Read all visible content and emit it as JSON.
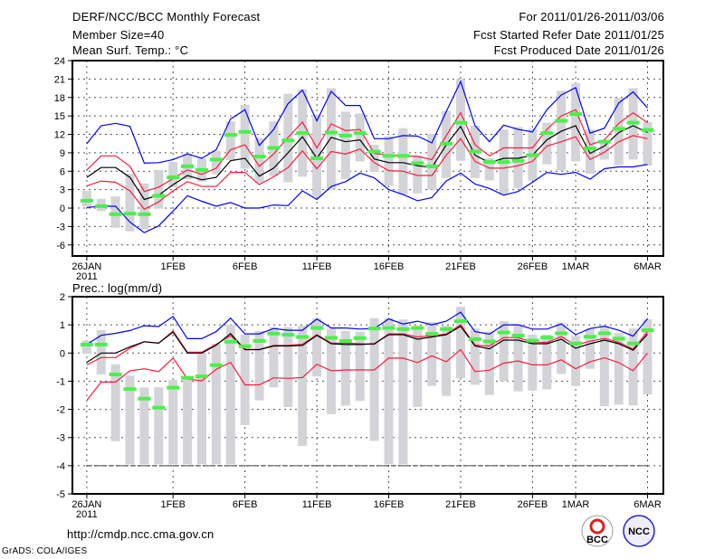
{
  "header": {
    "title": "DERF/NCC/BCC Monthly Forecast",
    "member_size": "Member Size=40",
    "variable": "Mean Surf. Temp.: °C",
    "period": "For 2011/01/26-2011/03/06",
    "started": "Fcst Started Refer Date 2011/01/25",
    "produced": "Fcst Produced Date 2011/01/26"
  },
  "footer": {
    "url": "http://cmdp.ncc.cma.gov.cn",
    "credit": "GrADS: COLA/IGES",
    "logo_bcc": "BCC",
    "logo_ncc": "NCC"
  },
  "colors": {
    "upper_lower_extreme": "#0000ff",
    "spread": "#ff1a3c",
    "mean": "#000000",
    "marker": "#4cf04c",
    "bar": "#d3d4d8"
  },
  "chart_data": [
    {
      "type": "line",
      "title": "Mean Surf. Temp.: °C",
      "x_ticks": [
        {
          "i": 0,
          "label": "26JAN"
        },
        {
          "i": 6,
          "label": "1FEB"
        },
        {
          "i": 11,
          "label": "6FEB"
        },
        {
          "i": 16,
          "label": "11FEB"
        },
        {
          "i": 21,
          "label": "16FEB"
        },
        {
          "i": 26,
          "label": "21FEB"
        },
        {
          "i": 31,
          "label": "26FEB"
        },
        {
          "i": 34,
          "label": "1MAR"
        },
        {
          "i": 39,
          "label": "6MAR"
        }
      ],
      "year_label": "2011",
      "xlim": [
        -1,
        40.1
      ],
      "ylim": [
        -7.8,
        24
      ],
      "y_ticks": [
        24,
        21,
        18,
        15,
        12,
        9,
        6,
        3,
        0,
        -3,
        -6
      ],
      "grid": true,
      "bars_lo": [
        0.3,
        -0.5,
        -3.2,
        -3.8,
        -3.5,
        -0.1,
        3.4,
        4.7,
        4.3,
        5.5,
        7.8,
        6.4,
        4.1,
        5.2,
        4.2,
        5.1,
        1.9,
        3,
        4.7,
        7.6,
        5.9,
        3.6,
        2.2,
        2.4,
        3,
        4.9,
        7.7,
        4.9,
        4.5,
        2.1,
        3.2,
        4.5,
        7.1,
        6.1,
        7.6,
        5.6,
        7.9,
        7,
        7.9,
        6.9
      ],
      "bars_hi": [
        2.8,
        1.5,
        1.9,
        5.6,
        4,
        6.2,
        7.5,
        8.9,
        8.1,
        9.3,
        14.1,
        16.8,
        11.4,
        14.1,
        18.6,
        19.3,
        15.2,
        19.5,
        15.7,
        15.4,
        10.3,
        11.7,
        13,
        8.6,
        12.1,
        15.8,
        21,
        13.4,
        8.1,
        12.8,
        13.2,
        12.9,
        13.9,
        19.1,
        20.3,
        12.8,
        11.1,
        17.9,
        19.5,
        14
      ],
      "series": [
        {
          "name": "max",
          "color": "#0000ff",
          "values": [
            10.5,
            13.4,
            13.8,
            13.3,
            7.3,
            7.4,
            7.9,
            8.8,
            8.1,
            9.5,
            14.5,
            16,
            10.2,
            12.8,
            17,
            19.2,
            14.2,
            19,
            16.7,
            16.7,
            11.3,
            11.3,
            11.8,
            11.7,
            10.6,
            15.7,
            20.6,
            13.4,
            10.8,
            13.5,
            12.8,
            12.4,
            16,
            18.4,
            19.6,
            12.2,
            13,
            17.1,
            18.9,
            16.3
          ]
        },
        {
          "name": "upper",
          "color": "#ff1a3c",
          "values": [
            6.2,
            8.5,
            8.5,
            6.8,
            2.7,
            3.4,
            4.8,
            6.2,
            5.5,
            6.5,
            9.5,
            10.3,
            6.8,
            8.8,
            11.5,
            14,
            9.8,
            13.7,
            12.6,
            12.8,
            8.9,
            8.6,
            8.5,
            8.4,
            7.9,
            11.8,
            15.5,
            10.3,
            8.5,
            9.8,
            9.8,
            9.8,
            12.8,
            15,
            16,
            10.3,
            11.1,
            13.8,
            15.5,
            13.9
          ]
        },
        {
          "name": "mean",
          "color": "#000000",
          "values": [
            5,
            6.6,
            6.6,
            5,
            1.4,
            2.1,
            3.8,
            5.3,
            4.6,
            5,
            7.7,
            8.1,
            5.2,
            6.5,
            9,
            11.6,
            8.1,
            11.5,
            10.8,
            11.1,
            8,
            7.4,
            7.4,
            6.9,
            6.6,
            10.3,
            13.3,
            8.6,
            7.4,
            8.1,
            8.1,
            8.6,
            11.1,
            12.5,
            13.4,
            8.9,
            10.1,
            12.3,
            13.4,
            12.3
          ]
        },
        {
          "name": "lower",
          "color": "#ff1a3c",
          "values": [
            3.6,
            4.4,
            4.2,
            2.8,
            -0.2,
            1,
            2.8,
            4.3,
            3.5,
            3.5,
            5.8,
            5.8,
            3.8,
            5.1,
            6.6,
            9.3,
            6.4,
            9.2,
            8.8,
            9.6,
            7.4,
            6.1,
            6,
            5.3,
            5.3,
            8.6,
            11.3,
            7.6,
            6.5,
            6.5,
            6.9,
            7.6,
            10.1,
            10.8,
            11.6,
            7.9,
            9.1,
            10.8,
            11.8,
            11.3
          ]
        },
        {
          "name": "min",
          "color": "#0000ff",
          "values": [
            0.1,
            0.3,
            0.3,
            -2.3,
            -4,
            -2.9,
            -0.5,
            2,
            1.1,
            0.3,
            0.9,
            0,
            0,
            0.5,
            0.4,
            2.8,
            1.4,
            3.5,
            4.3,
            5.7,
            4.9,
            3,
            2.2,
            1.2,
            1.7,
            4.4,
            5.7,
            3.9,
            3.2,
            2.1,
            2.7,
            4.2,
            5.8,
            5.5,
            5.8,
            4.7,
            6.4,
            6.7,
            6.7,
            7.1
          ]
        }
      ],
      "markers": [
        1.2,
        0.3,
        -1,
        -0.9,
        -1,
        2,
        5,
        6.8,
        6.2,
        7.9,
        11.9,
        12.4,
        8.4,
        9.8,
        11,
        12.2,
        8.1,
        12.3,
        11.8,
        12.2,
        9.2,
        8.5,
        8.5,
        7.3,
        6.8,
        10.5,
        13.9,
        9.2,
        7.5,
        7.5,
        7.7,
        8.6,
        12.2,
        14.2,
        15.3,
        9.7,
        10.8,
        12.9,
        13.9,
        12.7
      ]
    },
    {
      "type": "line",
      "title": "Prec.: log(mm/d)",
      "xlim": [
        -1,
        40.1
      ],
      "ylim": [
        -5,
        2
      ],
      "y_ticks": [
        2,
        1,
        0,
        -1,
        -2,
        -3,
        -4,
        -5
      ],
      "grid": true,
      "reference_line": -4,
      "bars_lo": [
        -0.02,
        -0.76,
        -3.13,
        -3.95,
        -3.95,
        -3.95,
        -3.95,
        -3.95,
        -3.95,
        -3.95,
        -3.95,
        -2.56,
        -1.68,
        -1.22,
        -1.92,
        -3.3,
        -0.83,
        -2.17,
        -1.87,
        -1.7,
        -3.12,
        -3.95,
        -3.95,
        -1.92,
        -1.17,
        -1.52,
        -0.9,
        -1.13,
        -1.49,
        -1,
        -1.36,
        -1.33,
        -1.29,
        -0.74,
        -1.17,
        -0.56,
        -1.89,
        -1.83,
        -1.86,
        -1.47
      ],
      "bars_hi": [
        0.44,
        0.81,
        -0.4,
        -0.8,
        -1.22,
        -1.22,
        -0.95,
        -0.83,
        0,
        0.33,
        1,
        0.65,
        0.78,
        0.92,
        0.92,
        0.97,
        1.22,
        0.87,
        0.78,
        0.76,
        1.24,
        1.24,
        1.19,
        0.97,
        1.1,
        0.97,
        1.64,
        0.87,
        0.76,
        1.13,
        1.03,
        0.65,
        0.65,
        1.08,
        0.6,
        0.87,
        0.97,
        0.71,
        0.87,
        1.19
      ],
      "series": [
        {
          "name": "max",
          "color": "#0000ff",
          "values": [
            0.3,
            0.63,
            0.7,
            0.8,
            0.97,
            0.94,
            1.3,
            0.51,
            0.51,
            0.76,
            1.24,
            0.68,
            0.68,
            0.87,
            0.81,
            0.81,
            1.21,
            0.89,
            0.89,
            0.85,
            0.87,
            1.21,
            1.03,
            1.13,
            1,
            1.13,
            1.45,
            0.76,
            0.67,
            1,
            1,
            0.85,
            0.85,
            1.03,
            0.65,
            0.87,
            0.95,
            0.81,
            0.6,
            1.22
          ]
        },
        {
          "name": "upper",
          "color": "#ff1a3c",
          "values": [
            -0.42,
            -0.16,
            -0.16,
            0.17,
            0.4,
            0.35,
            0.78,
            0.03,
            0.03,
            0.31,
            0.62,
            0.12,
            0.12,
            0.27,
            0.27,
            0.31,
            0.65,
            0.35,
            0.35,
            0.33,
            0.31,
            0.68,
            0.68,
            0.57,
            0.62,
            0.67,
            1,
            0.28,
            0.25,
            0.55,
            0.55,
            0.38,
            0.38,
            0.58,
            0.28,
            0.42,
            0.52,
            0.38,
            0.14,
            0.76
          ]
        },
        {
          "name": "mean",
          "color": "#000000",
          "values": [
            -0.33,
            0,
            0,
            0.22,
            0.4,
            0.35,
            0.74,
            0,
            0,
            0.28,
            0.69,
            0.12,
            0.12,
            0.25,
            0.25,
            0.27,
            0.63,
            0.33,
            0.3,
            0.3,
            0.33,
            0.65,
            0.65,
            0.49,
            0.57,
            0.65,
            0.95,
            0.25,
            0.15,
            0.46,
            0.46,
            0.33,
            0.33,
            0.49,
            0.17,
            0.33,
            0.46,
            0.33,
            0.1,
            0.67
          ]
        },
        {
          "name": "lower",
          "color": "#ff1a3c",
          "values": [
            -1.68,
            -1.03,
            -1.03,
            -0.63,
            -0.56,
            -0.66,
            -0.18,
            -0.92,
            -0.99,
            -0.58,
            -0.33,
            -1.13,
            -1.13,
            -0.88,
            -0.9,
            -0.87,
            -0.4,
            -0.63,
            -0.6,
            -0.6,
            -0.6,
            -0.18,
            -0.18,
            -0.34,
            -0.1,
            -0.31,
            0.12,
            -0.66,
            -0.61,
            -0.36,
            -0.28,
            -0.42,
            -0.42,
            -0.24,
            -0.56,
            -0.31,
            -0.17,
            -0.34,
            -0.63,
            0
          ]
        }
      ],
      "markers": [
        0.3,
        0.3,
        -0.76,
        -1.28,
        -1.62,
        -1.94,
        -1.23,
        -0.88,
        -0.83,
        -0.43,
        0.4,
        0.24,
        0.43,
        0.69,
        0.65,
        0.57,
        0.89,
        0.54,
        0.43,
        0.53,
        0.87,
        0.89,
        0.85,
        0.89,
        0.68,
        0.85,
        1.13,
        0.49,
        0.41,
        0.73,
        0.62,
        0.44,
        0.55,
        0.7,
        0.34,
        0.58,
        0.7,
        0.51,
        0.34,
        0.81
      ]
    }
  ]
}
